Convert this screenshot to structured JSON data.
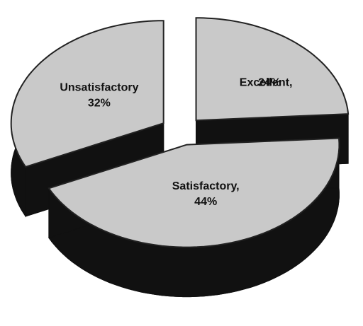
{
  "chart_data": {
    "type": "pie",
    "categories": [
      "Unsatisfactory",
      "Excellent,",
      "Satisfactory,"
    ],
    "values": [
      32,
      24,
      44
    ],
    "value_labels": [
      "32%",
      "24%",
      "44%"
    ],
    "color": "#c9c9c9",
    "order": [
      1,
      2,
      0
    ]
  }
}
